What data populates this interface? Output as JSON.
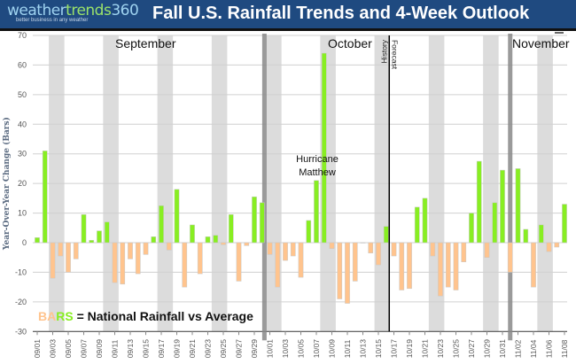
{
  "header": {
    "logo_a": "weather",
    "logo_b": "trends",
    "logo_c": "360",
    "tagline": "better business in any weather"
  },
  "chart_data": {
    "type": "bar",
    "title": "Fall U.S. Rainfall Trends and 4-Week Outlook",
    "ylabel": "Year-Over-Year Change (Bars)",
    "ylim": [
      -30,
      70
    ],
    "yticks": [
      -30,
      -20,
      -10,
      0,
      10,
      20,
      30,
      40,
      50,
      60,
      70
    ],
    "grid": true,
    "categories": [
      "09/01",
      "09/02",
      "09/03",
      "09/04",
      "09/05",
      "09/06",
      "09/07",
      "09/08",
      "09/09",
      "09/10",
      "09/11",
      "09/12",
      "09/13",
      "09/14",
      "09/15",
      "09/16",
      "09/17",
      "09/18",
      "09/19",
      "09/20",
      "09/21",
      "09/22",
      "09/23",
      "09/24",
      "09/25",
      "09/26",
      "09/27",
      "09/28",
      "09/29",
      "09/30",
      "10/01",
      "10/02",
      "10/03",
      "10/04",
      "10/05",
      "10/06",
      "10/07",
      "10/08",
      "10/09",
      "10/10",
      "10/11",
      "10/12",
      "10/13",
      "10/14",
      "10/15",
      "10/16",
      "10/17",
      "10/18",
      "10/19",
      "10/20",
      "10/21",
      "10/22",
      "10/23",
      "10/24",
      "10/25",
      "10/26",
      "10/27",
      "10/28",
      "10/29",
      "10/30",
      "10/31",
      "11/01",
      "11/02",
      "11/03",
      "11/04",
      "11/05",
      "11/06",
      "11/07",
      "11/08"
    ],
    "values": [
      1.7,
      31,
      -12,
      -4.5,
      -10,
      -5.5,
      9.5,
      0.8,
      4,
      7,
      -13.5,
      -14,
      -5.5,
      -10.5,
      -4,
      2,
      12.5,
      -2.5,
      18,
      -15,
      6,
      -10.5,
      2,
      2.5,
      -0.7,
      9.5,
      -13,
      -1,
      15.5,
      13.5,
      -4,
      -15,
      -6,
      -4.5,
      -11.7,
      7.5,
      21,
      64,
      -2,
      -19,
      -20.5,
      -13,
      0,
      -3.5,
      -7.5,
      5.5,
      -4.5,
      -16,
      -15.5,
      12,
      15,
      -4.5,
      -18,
      -15,
      -16,
      -6.5,
      10,
      27.5,
      -5,
      13.5,
      24.5,
      -10,
      25,
      4.5,
      -15,
      6,
      -3,
      -1.5,
      13
    ],
    "weekend_start_dates": [
      "09/03",
      "09/10",
      "09/17",
      "09/24",
      "10/01",
      "10/08",
      "10/15",
      "10/22",
      "10/29",
      "11/05"
    ],
    "month_labels": [
      "September",
      "October",
      "November"
    ],
    "annotations": {
      "hurricane": [
        "Hurricane",
        "Matthew"
      ],
      "history": "History",
      "forecast": "Forecast"
    },
    "legend": {
      "part_a": "BA",
      "part_b": "RS",
      "rest": " = National Rainfall vs Average"
    },
    "colors": {
      "positive": "#88ee22",
      "negative": "#ffc48e",
      "weekend": "#dcdcdc",
      "month_line": "#888888",
      "legend_a": "#ffc48e",
      "legend_b": "#88ee22"
    }
  }
}
